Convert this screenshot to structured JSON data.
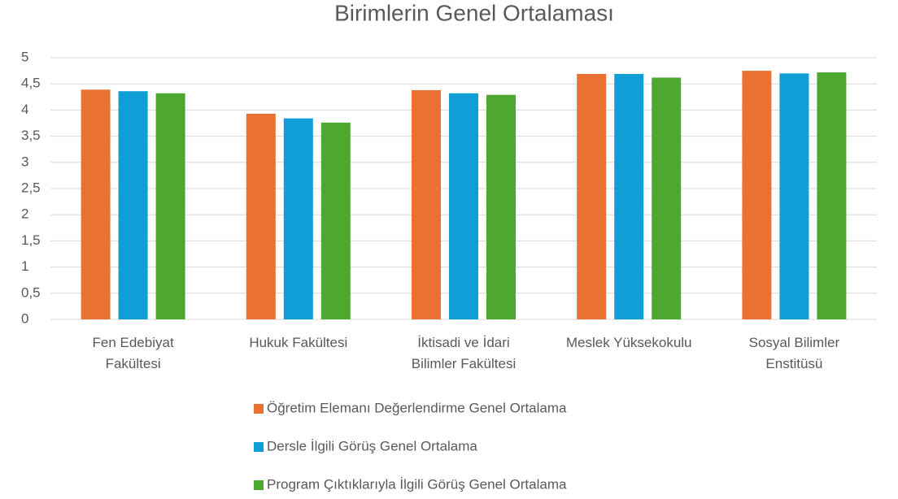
{
  "chart_data": {
    "type": "bar",
    "title": "Birimlerin Genel Ortalaması",
    "categories": [
      "Fen Edebiyat Fakültesi",
      "Hukuk Fakültesi",
      "İktisadi ve İdari Bilimler Fakültesi",
      "Meslek Yüksekokulu",
      "Sosyal Bilimler Enstitüsü"
    ],
    "series": [
      {
        "name": "Öğretim Elemanı Değerlendirme Genel Ortalama",
        "color": "#e97132",
        "values": [
          4.39,
          3.93,
          4.38,
          4.69,
          4.75
        ]
      },
      {
        "name": "Dersle İlgili Görüş Genel Ortalama",
        "color": "#0f9ed5",
        "values": [
          4.36,
          3.84,
          4.32,
          4.69,
          4.7
        ]
      },
      {
        "name": "Program Çıktıklarıyla İlgili Görüş Genel Ortalama",
        "color": "#4ea72e",
        "values": [
          4.32,
          3.76,
          4.29,
          4.62,
          4.72
        ]
      }
    ],
    "ylim": [
      0,
      5
    ],
    "yticks": [
      0,
      {
        "value": 0.5,
        "label": "0,5"
      },
      1,
      {
        "value": 1.5,
        "label": "1,5"
      },
      2,
      {
        "value": 2.5,
        "label": "2,5"
      },
      3,
      {
        "value": 3.5,
        "label": "3,5"
      },
      4,
      {
        "value": 4.5,
        "label": "4,5"
      },
      5
    ],
    "grid": true,
    "legend": "bottom"
  }
}
